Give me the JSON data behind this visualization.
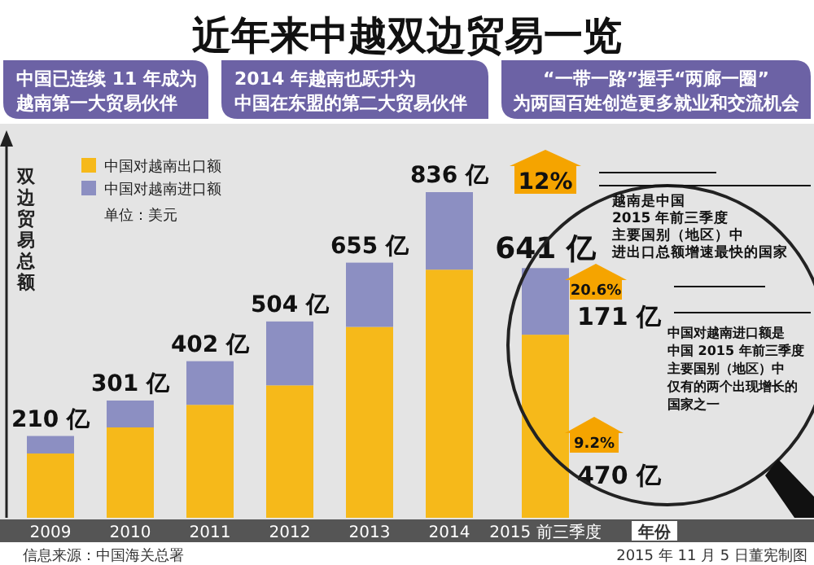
{
  "chart_data": {
    "type": "bar",
    "stacked": true,
    "title": "近年来中越双边贸易一览",
    "ylabel": "双边贸易总额",
    "xlabel": "年份",
    "legend": "top left",
    "categories": [
      "2009",
      "2010",
      "2011",
      "2012",
      "2013",
      "2014",
      "2015 前三季度"
    ],
    "series": [
      {
        "name": "中国对越南出口额",
        "color": "#f6b91a",
        "values": [
          165,
          232,
          290,
          340,
          490,
          637,
          470
        ],
        "value_labels": [
          null,
          null,
          null,
          null,
          null,
          null,
          "470 亿"
        ]
      },
      {
        "name": "中国对越南进口额",
        "color": "#8c8fc2",
        "values": [
          45,
          69,
          112,
          164,
          165,
          199,
          171
        ],
        "value_labels": [
          null,
          null,
          null,
          null,
          null,
          null,
          "171 亿"
        ]
      }
    ],
    "totals": [
      "210 亿",
      "301 亿",
      "402 亿",
      "504 亿",
      "655 亿",
      "836 亿",
      "641 亿"
    ],
    "annotations": [
      "中国已连续 11 年成为越南第一大贸易伙伴",
      "2014 年越南也跃升为中国在东盟的第二大贸易伙伴",
      "“一带一路”握手“两廊一圈”为两国百姓创造更多就业和交流机会",
      "单位：美元",
      "12%",
      "越南是中国2015 年前三季度主要国别（地区）中进出口总额增速最快的国家",
      "20.6%",
      "中国对越南进口额是中国 2015 年前三季度主要国别（地区）中仅有的两个出现增长的国家之一",
      "9.2%",
      "信息来源：中国海关总署",
      "2015 年 11 月 5 日董宪制图"
    ]
  }
}
